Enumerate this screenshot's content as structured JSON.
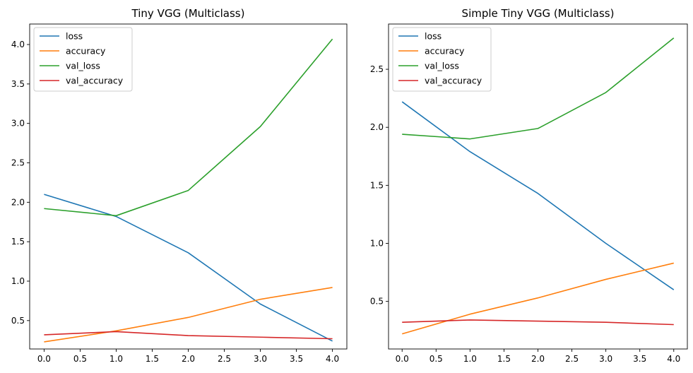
{
  "chart_data": [
    {
      "type": "line",
      "title": "Tiny VGG (Multiclass)",
      "xlabel": "",
      "ylabel": "",
      "x": [
        0,
        1,
        2,
        3,
        4
      ],
      "xlim": [
        -0.2,
        4.2
      ],
      "ylim": [
        0.14,
        4.26
      ],
      "xticks": [
        "0.0",
        "0.5",
        "1.0",
        "1.5",
        "2.0",
        "2.5",
        "3.0",
        "3.5",
        "4.0"
      ],
      "yticks": [
        "0.5",
        "1.0",
        "1.5",
        "2.0",
        "2.5",
        "3.0",
        "3.5",
        "4.0"
      ],
      "grid": false,
      "legend_position": "top-left",
      "series": [
        {
          "name": "loss",
          "color": "#1f77b4",
          "values": [
            2.1,
            1.82,
            1.36,
            0.71,
            0.24
          ]
        },
        {
          "name": "accuracy",
          "color": "#ff7f0e",
          "values": [
            0.23,
            0.37,
            0.54,
            0.77,
            0.92
          ]
        },
        {
          "name": "val_loss",
          "color": "#2ca02c",
          "values": [
            1.92,
            1.83,
            2.15,
            2.96,
            4.07
          ]
        },
        {
          "name": "val_accuracy",
          "color": "#d62728",
          "values": [
            0.32,
            0.36,
            0.31,
            0.29,
            0.27
          ]
        }
      ]
    },
    {
      "type": "line",
      "title": "Simple Tiny VGG (Multiclass)",
      "xlabel": "",
      "ylabel": "",
      "x": [
        0,
        1,
        2,
        3,
        4
      ],
      "xlim": [
        -0.2,
        4.2
      ],
      "ylim": [
        0.09,
        2.89
      ],
      "xticks": [
        "0.0",
        "0.5",
        "1.0",
        "1.5",
        "2.0",
        "2.5",
        "3.0",
        "3.5",
        "4.0"
      ],
      "yticks": [
        "0.5",
        "1.0",
        "1.5",
        "2.0",
        "2.5"
      ],
      "grid": false,
      "legend_position": "top-left",
      "series": [
        {
          "name": "loss",
          "color": "#1f77b4",
          "values": [
            2.22,
            1.79,
            1.43,
            1.0,
            0.6
          ]
        },
        {
          "name": "accuracy",
          "color": "#ff7f0e",
          "values": [
            0.22,
            0.39,
            0.53,
            0.69,
            0.83
          ]
        },
        {
          "name": "val_loss",
          "color": "#2ca02c",
          "values": [
            1.94,
            1.9,
            1.99,
            2.3,
            2.77
          ]
        },
        {
          "name": "val_accuracy",
          "color": "#d62728",
          "values": [
            0.32,
            0.34,
            0.33,
            0.32,
            0.3
          ]
        }
      ]
    }
  ]
}
